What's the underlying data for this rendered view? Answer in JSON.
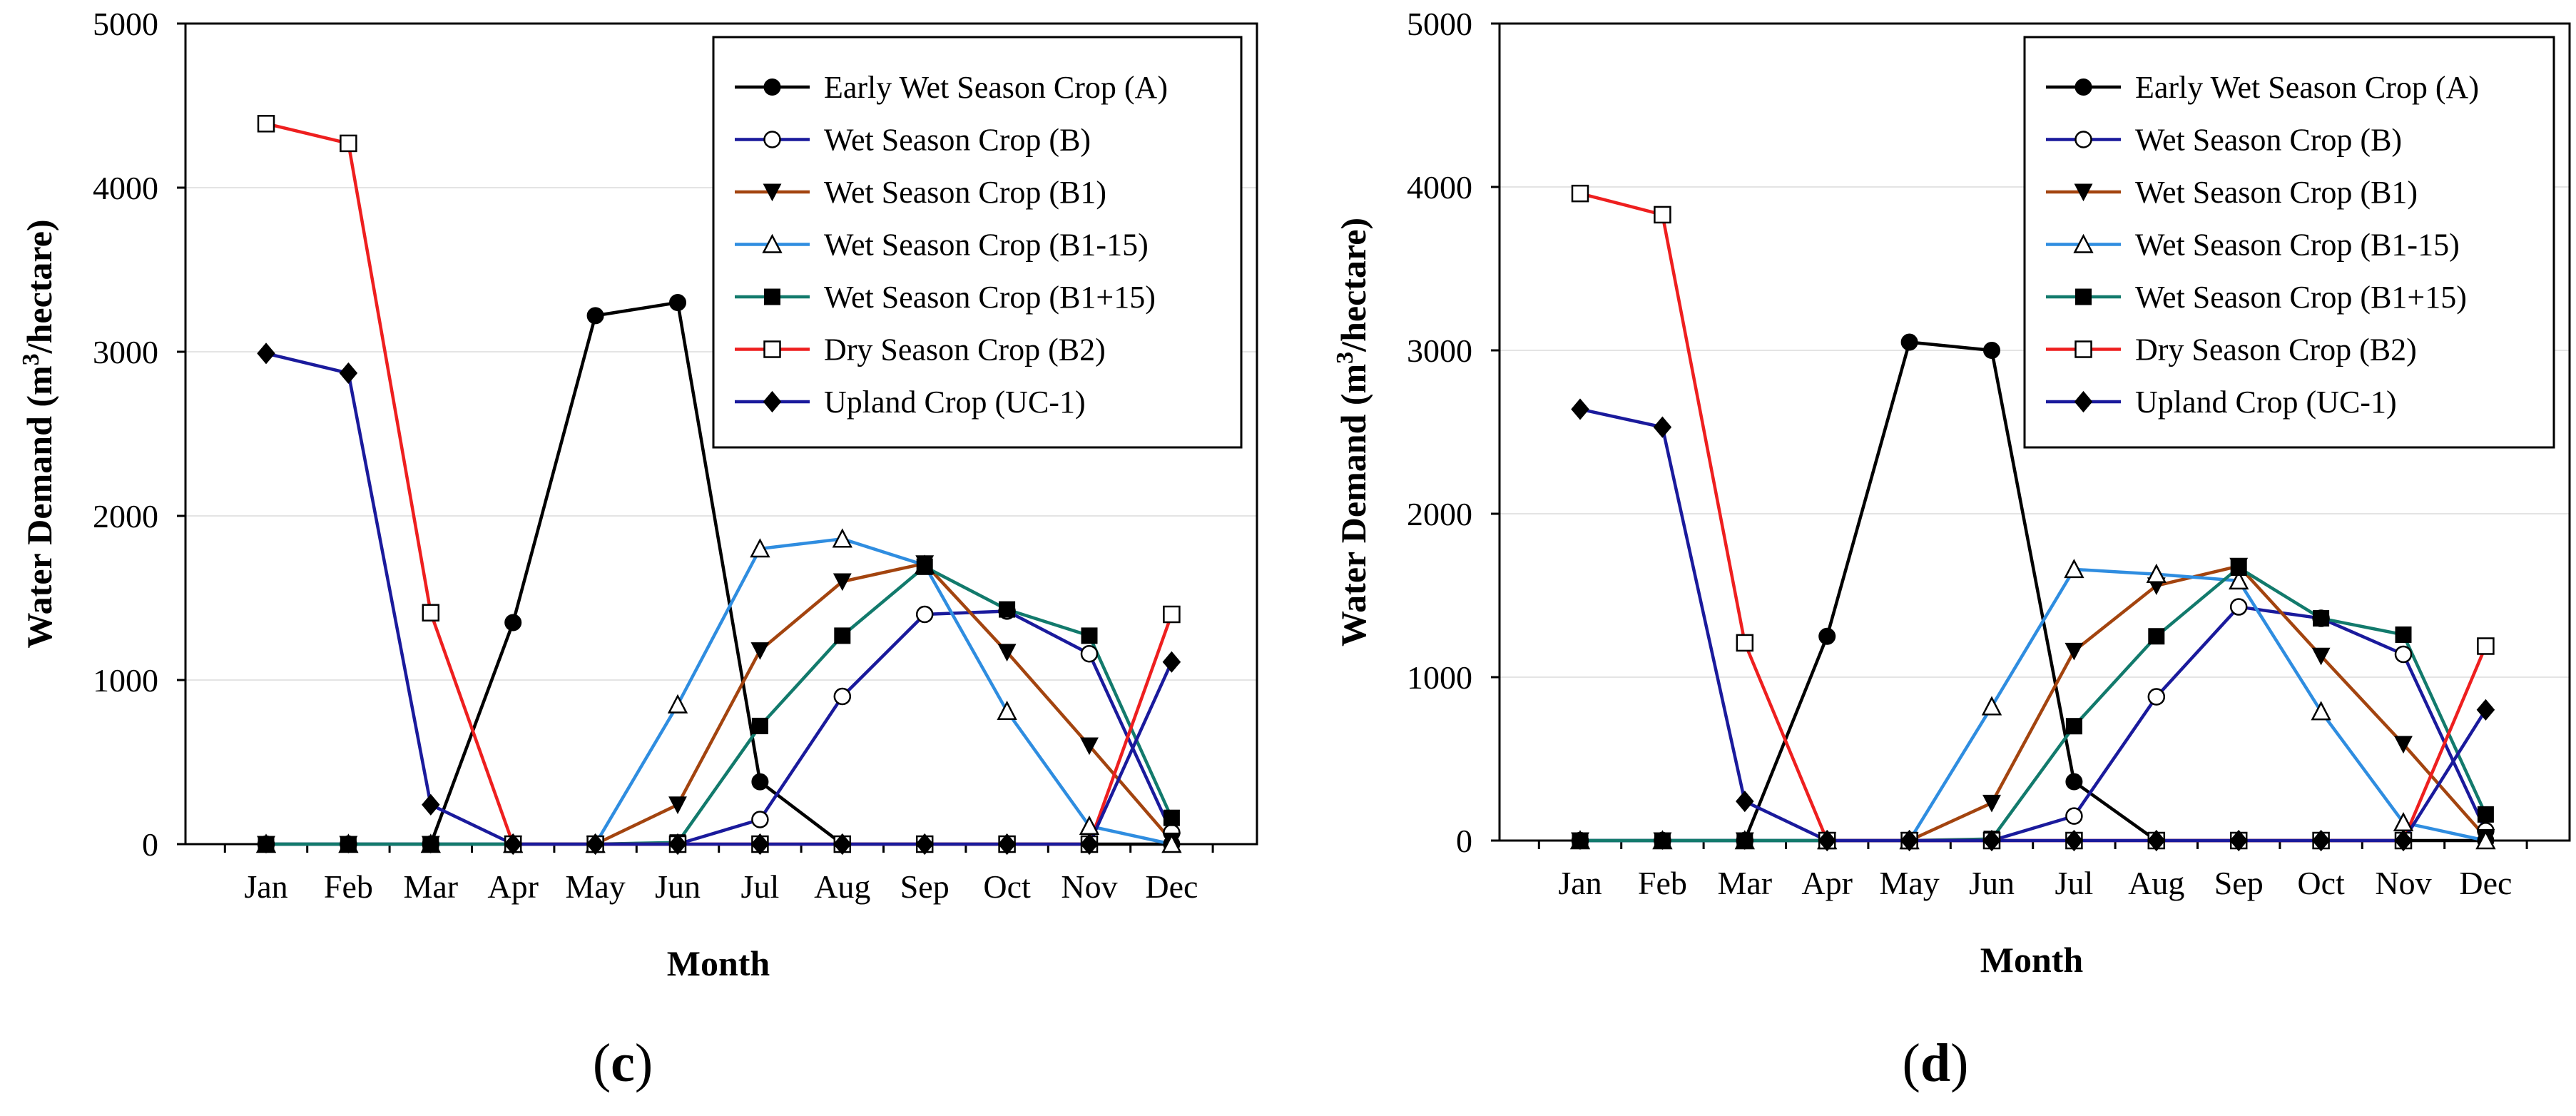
{
  "chart_data": [
    {
      "type": "line",
      "panel_label": "(c)",
      "panel_open": "(",
      "panel_letter": "c",
      "panel_close": ")",
      "xlabel": "Month",
      "ylabel": "Water Demand (m3/hectare)",
      "ylabel_pre": "Water Demand (m",
      "ylabel_sup": "3",
      "ylabel_post": "/hectare)",
      "ylim": [
        0,
        5000
      ],
      "yticks": [
        0,
        1000,
        2000,
        3000,
        4000,
        5000
      ],
      "grid": "horizontal",
      "legend_position": "top-right",
      "categories": [
        "Jan",
        "Feb",
        "Mar",
        "Apr",
        "May",
        "Jun",
        "Jul",
        "Aug",
        "Sep",
        "Oct",
        "Nov",
        "Dec"
      ],
      "series": [
        {
          "name": "Early Wet Season Crop (A)",
          "color": "#000000",
          "marker": "filled-circle",
          "values": [
            0,
            0,
            0,
            1350,
            3220,
            3300,
            380,
            0,
            0,
            0,
            0,
            0
          ]
        },
        {
          "name": "Wet Season Crop (B)",
          "color": "#1a1a9c",
          "marker": "open-circle",
          "values": [
            0,
            0,
            0,
            0,
            0,
            0,
            150,
            900,
            1400,
            1420,
            1160,
            70
          ]
        },
        {
          "name": "Wet Season Crop (B1)",
          "color": "#a3440f",
          "marker": "filled-triangle-down",
          "values": [
            0,
            0,
            0,
            0,
            0,
            240,
            1180,
            1600,
            1710,
            1170,
            600,
            20
          ]
        },
        {
          "name": "Wet Season Crop (B1-15)",
          "color": "#2f8de0",
          "marker": "open-triangle-up",
          "values": [
            0,
            0,
            0,
            0,
            0,
            850,
            1800,
            1860,
            1700,
            810,
            110,
            0
          ]
        },
        {
          "name": "Wet Season Crop (B1+15)",
          "color": "#127a6c",
          "marker": "filled-square",
          "values": [
            0,
            0,
            0,
            0,
            0,
            10,
            720,
            1270,
            1690,
            1430,
            1270,
            160
          ]
        },
        {
          "name": "Dry Season Crop (B2)",
          "color": "#ee1f1f",
          "marker": "open-square",
          "values": [
            4390,
            4270,
            1410,
            0,
            0,
            0,
            0,
            0,
            0,
            0,
            0,
            1400
          ]
        },
        {
          "name": "Upland Crop (UC-1)",
          "color": "#1a1a9c",
          "marker": "filled-diamond",
          "values": [
            2990,
            2870,
            240,
            0,
            0,
            0,
            0,
            0,
            0,
            0,
            0,
            1110
          ]
        }
      ]
    },
    {
      "type": "line",
      "panel_label": "(d)",
      "panel_open": "(",
      "panel_letter": "d",
      "panel_close": ")",
      "xlabel": "Month",
      "ylabel": "Water Demand (m3/hectare)",
      "ylabel_pre": "Water Demand (m",
      "ylabel_sup": "3",
      "ylabel_post": "/hectare)",
      "ylim": [
        0,
        5000
      ],
      "yticks": [
        0,
        1000,
        2000,
        3000,
        4000,
        5000
      ],
      "grid": "horizontal",
      "legend_position": "top-right",
      "categories": [
        "Jan",
        "Feb",
        "Mar",
        "Apr",
        "May",
        "Jun",
        "Jul",
        "Aug",
        "Sep",
        "Oct",
        "Nov",
        "Dec"
      ],
      "series": [
        {
          "name": "Early Wet Season Crop (A)",
          "color": "#000000",
          "marker": "filled-circle",
          "values": [
            0,
            0,
            0,
            1250,
            3050,
            3000,
            360,
            0,
            0,
            0,
            0,
            0
          ]
        },
        {
          "name": "Wet Season Crop (B)",
          "color": "#1a1a9c",
          "marker": "open-circle",
          "values": [
            0,
            0,
            0,
            0,
            0,
            0,
            150,
            880,
            1430,
            1360,
            1140,
            60
          ]
        },
        {
          "name": "Wet Season Crop (B1)",
          "color": "#a3440f",
          "marker": "filled-triangle-down",
          "values": [
            0,
            0,
            0,
            0,
            0,
            230,
            1160,
            1560,
            1680,
            1130,
            590,
            20
          ]
        },
        {
          "name": "Wet Season Crop (B1-15)",
          "color": "#2f8de0",
          "marker": "open-triangle-up",
          "values": [
            0,
            0,
            0,
            0,
            0,
            820,
            1660,
            1630,
            1590,
            790,
            110,
            0
          ]
        },
        {
          "name": "Wet Season Crop (B1+15)",
          "color": "#127a6c",
          "marker": "filled-square",
          "values": [
            0,
            0,
            0,
            0,
            0,
            10,
            700,
            1250,
            1670,
            1360,
            1260,
            160
          ]
        },
        {
          "name": "Dry Season Crop (B2)",
          "color": "#ee1f1f",
          "marker": "open-square",
          "values": [
            3960,
            3830,
            1210,
            0,
            0,
            0,
            0,
            0,
            0,
            0,
            0,
            1190
          ]
        },
        {
          "name": "Upland Crop (UC-1)",
          "color": "#1a1a9c",
          "marker": "filled-diamond",
          "values": [
            2640,
            2530,
            240,
            0,
            0,
            0,
            0,
            0,
            0,
            0,
            0,
            800
          ]
        }
      ]
    }
  ]
}
